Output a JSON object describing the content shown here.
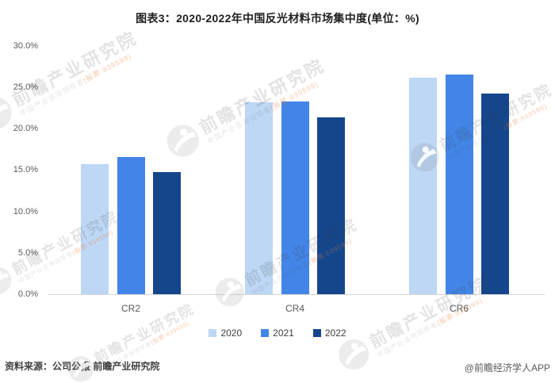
{
  "title": "图表3：2020-2022年中国反光材料市场集中度(单位：%)",
  "chart_data": {
    "type": "bar",
    "categories": [
      "CR2",
      "CR4",
      "CR6"
    ],
    "series": [
      {
        "name": "2020",
        "color": "#BDD7F5",
        "values": [
          15.7,
          23.2,
          26.1
        ]
      },
      {
        "name": "2021",
        "color": "#4285E7",
        "values": [
          16.6,
          23.3,
          26.5
        ]
      },
      {
        "name": "2022",
        "color": "#15468C",
        "values": [
          14.7,
          21.3,
          24.2
        ]
      }
    ],
    "title": "图表3：2020-2022年中国反光材料市场集中度(单位：%)",
    "xlabel": "",
    "ylabel": "",
    "ylim": [
      0,
      30
    ],
    "ytick_step": 5,
    "ytick_labels": [
      "0.0%",
      "5.0%",
      "10.0%",
      "15.0%",
      "20.0%",
      "25.0%",
      "30.0%"
    ],
    "grid": false,
    "legend_position": "bottom"
  },
  "watermark": {
    "brand": "前瞻产业研究院",
    "tagline": "中国产业咨询领导者",
    "stock": "(股票:839599)"
  },
  "footer": {
    "source": "资料来源：公司公报 前瞻产业研究院",
    "credit": "@前瞻经济学人APP"
  },
  "colors": {
    "axis_line": "#d6d6d6",
    "title_text": "#1f1f1f",
    "tick_text": "#595959",
    "series_2020": "#BDD7F5",
    "series_2021": "#4285E7",
    "series_2022": "#15468C"
  }
}
